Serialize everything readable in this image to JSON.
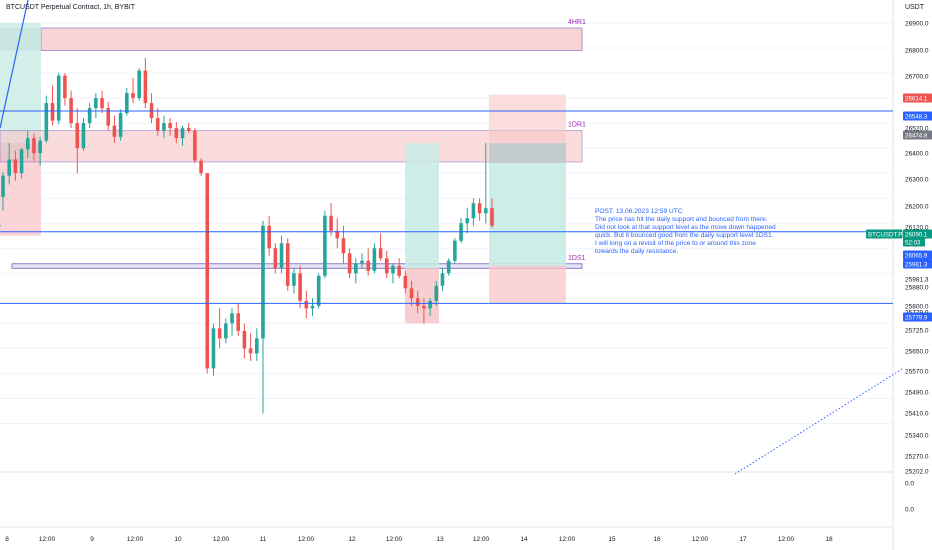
{
  "header": {
    "title": "BTCUSDT Perpetual Contract, 1h, BYBIT",
    "currency": "USDT"
  },
  "note": {
    "header": "POST: 13.06.2023 12:59 UTC",
    "body": "The price has hit the daily support and bounced from there. Did not look at that support level as the move down happened quick. But it bounced good from the daily support level 1DS1. I will long on a revisit of the price to or around this zone towards the daily resistance."
  },
  "colors": {
    "up": "#26a69a",
    "down": "#ef5350",
    "zone_red": "#f8c6c8",
    "zone_green": "#c8ebe5",
    "line_blue": "#2962ff",
    "label_purple": "#9c27b0"
  },
  "chart_data": {
    "type": "candlestick",
    "y_axis": {
      "ticks": [
        "26900.0",
        "26800.0",
        "26700.0",
        "26614.1",
        "26548.3",
        "26520.0",
        "26474.8",
        "26400.0",
        "26300.0",
        "26200.0",
        "26120.0",
        "26090.1",
        "26065.9",
        "25981.3",
        "25880.0",
        "25800.0",
        "25779.9",
        "25725.0",
        "25650.0",
        "25570.0",
        "25490.0",
        "25410.0",
        "25340.0",
        "25270.0",
        "25202.0",
        "0.0",
        "0.0"
      ]
    },
    "x_axis": {
      "ticks": [
        "8",
        "12:00",
        "9",
        "12:00",
        "10",
        "12:00",
        "11",
        "12:00",
        "12",
        "12:00",
        "13",
        "12:00",
        "14",
        "12:00",
        "15",
        "16",
        "12:00",
        "17",
        "12:00",
        "18"
      ]
    },
    "price_tags": [
      {
        "label": "26614.1",
        "color": "#ef5350"
      },
      {
        "label": "26548.3",
        "color": "#2962ff"
      },
      {
        "label": "26474.8",
        "color": "#787b86"
      },
      {
        "label": "BTCUSDT.P",
        "color": "#089981"
      },
      {
        "label": "26090.1",
        "color": "#089981"
      },
      {
        "label": "52:03",
        "color": "#089981"
      },
      {
        "label": "26065.9",
        "color": "#2962ff"
      },
      {
        "label": "25981.3",
        "color": "#2962ff"
      },
      {
        "label": "25779.9",
        "color": "#2962ff"
      }
    ],
    "levels": [
      {
        "name": "4HR1",
        "from": 26790,
        "to": 26880
      },
      {
        "name": "1DR1",
        "from": 26345,
        "to": 26470
      },
      {
        "name": "1DS1",
        "from": 25920,
        "to": 25938
      }
    ],
    "horizontal_lines": [
      26548.3,
      26065.9,
      25779.9
    ],
    "candles": [
      [
        26205,
        26305,
        26150,
        26290
      ],
      [
        26290,
        26420,
        26255,
        26355
      ],
      [
        26355,
        26390,
        26270,
        26300
      ],
      [
        26300,
        26400,
        26280,
        26395
      ],
      [
        26395,
        26470,
        26360,
        26440
      ],
      [
        26440,
        26460,
        26350,
        26380
      ],
      [
        26380,
        26445,
        26330,
        26430
      ],
      [
        26430,
        26610,
        26420,
        26580
      ],
      [
        26580,
        26650,
        26490,
        26510
      ],
      [
        26510,
        26700,
        26495,
        26690
      ],
      [
        26690,
        26700,
        26570,
        26600
      ],
      [
        26600,
        26630,
        26480,
        26500
      ],
      [
        26500,
        26560,
        26300,
        26400
      ],
      [
        26400,
        26520,
        26390,
        26500
      ],
      [
        26500,
        26580,
        26480,
        26560
      ],
      [
        26560,
        26620,
        26520,
        26600
      ],
      [
        26600,
        26630,
        26540,
        26560
      ],
      [
        26560,
        26585,
        26470,
        26490
      ],
      [
        26490,
        26530,
        26420,
        26445
      ],
      [
        26445,
        26555,
        26430,
        26540
      ],
      [
        26540,
        26640,
        26530,
        26620
      ],
      [
        26620,
        26680,
        26580,
        26600
      ],
      [
        26600,
        26720,
        26590,
        26710
      ],
      [
        26710,
        26760,
        26560,
        26580
      ],
      [
        26580,
        26620,
        26500,
        26520
      ],
      [
        26520,
        26560,
        26450,
        26470
      ],
      [
        26470,
        26530,
        26440,
        26500
      ],
      [
        26500,
        26520,
        26450,
        26480
      ],
      [
        26480,
        26505,
        26420,
        26440
      ],
      [
        26440,
        26490,
        26410,
        26480
      ],
      [
        26480,
        26500,
        26460,
        26470
      ],
      [
        26470,
        26480,
        26340,
        26350
      ],
      [
        26350,
        26360,
        26290,
        26300
      ],
      [
        26300,
        26300,
        25500,
        25520
      ],
      [
        25520,
        25700,
        25490,
        25680
      ],
      [
        25680,
        25760,
        25600,
        25640
      ],
      [
        25640,
        25720,
        25620,
        25700
      ],
      [
        25700,
        25760,
        25650,
        25740
      ],
      [
        25740,
        25780,
        25650,
        25670
      ],
      [
        25670,
        25700,
        25560,
        25600
      ],
      [
        25600,
        25660,
        25550,
        25580
      ],
      [
        25580,
        25680,
        25550,
        25640
      ],
      [
        25640,
        26110,
        25340,
        26090
      ],
      [
        26090,
        26130,
        25970,
        26000
      ],
      [
        26000,
        26020,
        25900,
        25920
      ],
      [
        25920,
        26050,
        25900,
        26020
      ],
      [
        26020,
        26040,
        25830,
        25850
      ],
      [
        25850,
        25920,
        25820,
        25900
      ],
      [
        25900,
        25930,
        25760,
        25790
      ],
      [
        25790,
        25830,
        25720,
        25760
      ],
      [
        25760,
        25800,
        25730,
        25770
      ],
      [
        25770,
        25900,
        25760,
        25890
      ],
      [
        25890,
        26150,
        25880,
        26130
      ],
      [
        26130,
        26180,
        26050,
        26070
      ],
      [
        26070,
        26120,
        26000,
        26040
      ],
      [
        26040,
        26090,
        25940,
        25980
      ],
      [
        25980,
        26000,
        25880,
        25900
      ],
      [
        25900,
        25960,
        25860,
        25940
      ],
      [
        25940,
        25980,
        25920,
        25950
      ],
      [
        25950,
        26000,
        25890,
        25910
      ],
      [
        25910,
        26020,
        25900,
        26000
      ],
      [
        26000,
        26060,
        25950,
        25960
      ],
      [
        25960,
        25990,
        25880,
        25900
      ],
      [
        25900,
        25940,
        25860,
        25930
      ],
      [
        25930,
        25960,
        25880,
        25890
      ],
      [
        25890,
        25910,
        25820,
        25840
      ],
      [
        25840,
        25870,
        25770,
        25800
      ],
      [
        25800,
        25830,
        25740,
        25770
      ],
      [
        25770,
        25800,
        25700,
        25760
      ],
      [
        25760,
        25800,
        25730,
        25790
      ],
      [
        25790,
        25870,
        25770,
        25850
      ],
      [
        25850,
        25920,
        25830,
        25900
      ],
      [
        25900,
        25960,
        25890,
        25950
      ],
      [
        25950,
        26040,
        25940,
        26030
      ],
      [
        26030,
        26120,
        26020,
        26100
      ],
      [
        26100,
        26160,
        26060,
        26120
      ],
      [
        26120,
        26200,
        26090,
        26180
      ],
      [
        26180,
        26200,
        26110,
        26140
      ],
      [
        26140,
        26420,
        26100,
        26160
      ],
      [
        26160,
        26200,
        26080,
        26090
      ]
    ]
  }
}
